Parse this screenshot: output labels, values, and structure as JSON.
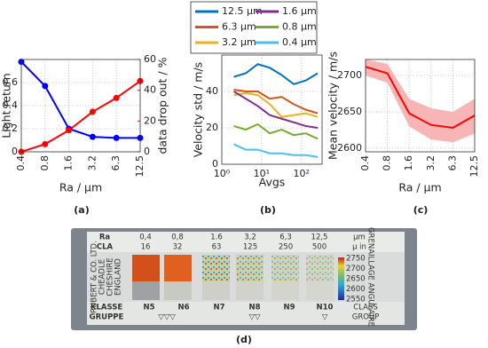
{
  "chart_data": [
    {
      "type": "line",
      "categories": [
        "0.4",
        "0.8",
        "1.6",
        "3.2",
        "6.3",
        "12.5"
      ],
      "xlabel": "Ra / µm",
      "ylabel": "Light return",
      "y2label": "data drop out / %",
      "ylim": [
        0,
        0.8
      ],
      "yticks": [
        0,
        0.2,
        0.4,
        0.6
      ],
      "y2lim": [
        0,
        60
      ],
      "y2ticks": [
        0,
        20,
        40,
        60
      ],
      "grid": true,
      "series": [
        {
          "color": "#0000ff",
          "marker": "circle",
          "values": [
            0.78,
            0.57,
            0.2,
            0.13,
            0.12,
            0.12
          ]
        },
        {
          "color": "#ff0000",
          "marker": "circle",
          "axis": "y2",
          "values": [
            0,
            5,
            14,
            26,
            35,
            46
          ]
        }
      ]
    },
    {
      "type": "line",
      "xscale": "log",
      "x": [
        2,
        4,
        8,
        16,
        32,
        64,
        128,
        256
      ],
      "xlim": [
        1,
        330
      ],
      "xticks": [
        {
          "value": 1,
          "label": "10⁰"
        },
        {
          "value": 10,
          "label": "10¹"
        },
        {
          "value": 100,
          "label": "10²"
        }
      ],
      "ylim": [
        0,
        60
      ],
      "yticks": [
        0,
        20,
        40
      ],
      "xlabel": "Avgs",
      "ylabel": "Velocity std / m/s",
      "grid": true,
      "legend": "top",
      "series": [
        {
          "name": "12.5 µm",
          "color": "#0072bd",
          "values": [
            48,
            50,
            55,
            53,
            49,
            44,
            46,
            50
          ]
        },
        {
          "name": "6.3 µm",
          "color": "#d95319",
          "values": [
            41,
            40,
            40,
            36,
            37,
            33,
            30,
            28
          ]
        },
        {
          "name": "3.2 µm",
          "color": "#edb120",
          "values": [
            38,
            39,
            38,
            33,
            26,
            27,
            28,
            26
          ]
        },
        {
          "name": "1.6 µm",
          "color": "#7e2f8e",
          "values": [
            40,
            36,
            32,
            27,
            25,
            23,
            21,
            20
          ]
        },
        {
          "name": "0.8 µm",
          "color": "#77ac30",
          "values": [
            21,
            19,
            22,
            17,
            19,
            16,
            17,
            14
          ]
        },
        {
          "name": "0.4 µm",
          "color": "#4dbeee",
          "values": [
            11,
            8,
            8,
            6,
            6,
            5,
            5,
            4
          ]
        }
      ]
    },
    {
      "type": "line",
      "categories": [
        "0.4",
        "0.8",
        "1.6",
        "3.2",
        "6.3",
        "12.5"
      ],
      "xlabel": "Ra / µm",
      "ylabel": "Mean velocity / m/s",
      "ylim": [
        2595,
        2722
      ],
      "yticks": [
        2600,
        2650,
        2700
      ],
      "grid": true,
      "series": [
        {
          "color": "#ff0000",
          "band_color": "#f7b5b5",
          "values": [
            2712,
            2703,
            2648,
            2632,
            2628,
            2645
          ],
          "lower": [
            2700,
            2690,
            2630,
            2612,
            2608,
            2620
          ],
          "upper": [
            2722,
            2716,
            2668,
            2655,
            2650,
            2668
          ]
        }
      ]
    }
  ],
  "panels": [
    "(a)",
    "(b)",
    "(c)",
    "(d)"
  ],
  "photo": {
    "rows": [
      {
        "label": "Ra",
        "values": [
          "0,4",
          "0,8",
          "1.6",
          "3,2",
          "6,3",
          "12,5"
        ],
        "unit": "µm"
      },
      {
        "label": "CLA",
        "values": [
          "16",
          "32",
          "63",
          "125",
          "250",
          "500"
        ],
        "unit": "µ in"
      }
    ],
    "maker": [
      "RUBERT & CO. LTD.",
      "CHEADLE",
      "CHESHIRE",
      "ENGLAND"
    ],
    "colorbar_ticks": [
      2750,
      2700,
      2650,
      2600,
      2550
    ],
    "side_text": "GRENAILLAGE ANGULAIRE",
    "class_row": {
      "label": "KLASSE",
      "values": [
        "N5",
        "N6",
        "N7",
        "N8",
        "N9",
        "N10"
      ],
      "end": "CLASS"
    },
    "group_row": {
      "label": "GRUPPE",
      "values": [
        "▽▽▽",
        "▽▽",
        "▽"
      ],
      "end": "GROUP"
    }
  }
}
